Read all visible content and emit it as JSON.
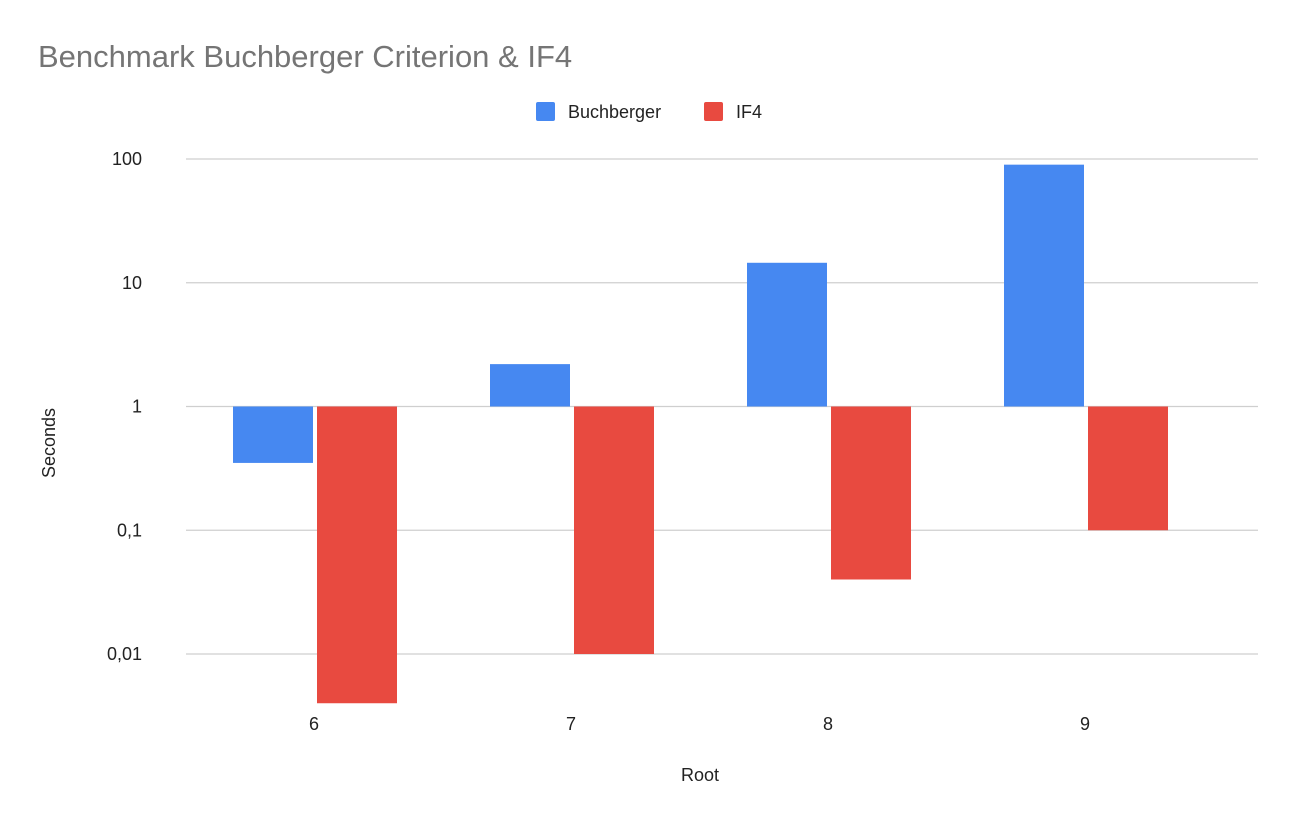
{
  "chart_data": {
    "type": "bar",
    "title": "Benchmark Buchberger Criterion & IF4",
    "xlabel": "Root",
    "ylabel": "Seconds",
    "categories": [
      "6",
      "7",
      "8",
      "9"
    ],
    "series": [
      {
        "name": "Buchberger",
        "color": "#4688f1",
        "values": [
          0.35,
          2.2,
          14.5,
          90
        ]
      },
      {
        "name": "IF4",
        "color": "#e84a40",
        "values": [
          0.004,
          0.01,
          0.04,
          0.1
        ]
      }
    ],
    "y_scale": "log",
    "ylim": [
      0.004,
      100
    ],
    "baseline": 1,
    "y_ticks": [
      {
        "value": 100,
        "label": "100"
      },
      {
        "value": 10,
        "label": "10"
      },
      {
        "value": 1,
        "label": "1"
      },
      {
        "value": 0.1,
        "label": "0,1"
      },
      {
        "value": 0.01,
        "label": "0,01"
      }
    ],
    "grid": true,
    "legend_position": "top-center"
  }
}
